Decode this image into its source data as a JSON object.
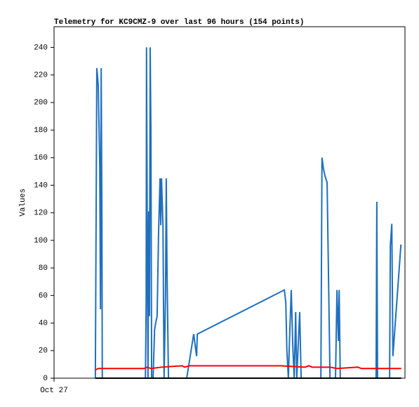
{
  "chart_data": {
    "type": "line",
    "title": "Telemetry for KC9CMZ-9 over last 96 hours (154 points)",
    "y_label": "Values",
    "xlim": [
      0,
      96
    ],
    "xticks": [
      {
        "value": 0,
        "label": "Oct 27"
      }
    ],
    "ylim": [
      0,
      255
    ],
    "yticks": [
      0,
      20,
      40,
      60,
      80,
      100,
      120,
      140,
      160,
      180,
      200,
      220,
      240
    ],
    "series": [
      {
        "color": "#1f6fbf",
        "x": [
          11.3,
          11.5,
          11.7,
          12.1,
          12.5,
          12.7,
          12.9,
          13.1,
          13.2,
          25.0,
          25.2,
          25.3,
          25.5,
          25.7,
          25.9,
          26.1,
          26.3,
          26.5,
          26.7,
          27.1,
          27.5,
          27.8,
          28.2,
          28.6,
          29.0,
          29.2,
          29.4,
          29.8,
          30.1,
          30.5,
          30.7,
          30.9,
          31.3,
          36.3,
          38.2,
          38.6,
          39.0,
          39.2,
          63.0,
          63.4,
          63.7,
          64.1,
          64.5,
          64.9,
          65.3,
          65.7,
          66.1,
          66.4,
          67.2,
          67.6,
          73.0,
          73.3,
          73.7,
          74.1,
          74.7,
          75.5,
          77.0,
          77.4,
          77.8,
          78.0,
          78.3,
          88.1,
          88.3,
          88.5,
          91.8,
          92.0,
          92.4,
          92.7,
          94.9
        ],
        "values": [
          0,
          111,
          225,
          212,
          155,
          50,
          225,
          111,
          0,
          0,
          55,
          240,
          106,
          0,
          121,
          45,
          240,
          180,
          0,
          0,
          35,
          40,
          45,
          106,
          145,
          111,
          145,
          111,
          0,
          60,
          145,
          80,
          0,
          0,
          32,
          24,
          16,
          32,
          64,
          55,
          20,
          0,
          35,
          64,
          24,
          0,
          48,
          0,
          48,
          0,
          0,
          160,
          152,
          147,
          142,
          0,
          0,
          64,
          27,
          64,
          0,
          0,
          128,
          0,
          0,
          96,
          112,
          16,
          97
        ]
      },
      {
        "color": "#ff0000",
        "x": [
          11.3,
          12.1,
          24.6,
          25.5,
          26.5,
          29.4,
          35.1,
          35.7,
          37.0,
          62.0,
          68.7,
          69.7,
          70.6,
          75.5,
          77.4,
          83.1,
          84.1,
          95.0
        ],
        "values": [
          6,
          7,
          7,
          8,
          7,
          8,
          9,
          8,
          9,
          9,
          8,
          9,
          8,
          8,
          7,
          8,
          7,
          7
        ]
      },
      {
        "color": "#000000",
        "x": [
          11.3,
          95.0
        ],
        "values": [
          0,
          0
        ]
      }
    ]
  }
}
